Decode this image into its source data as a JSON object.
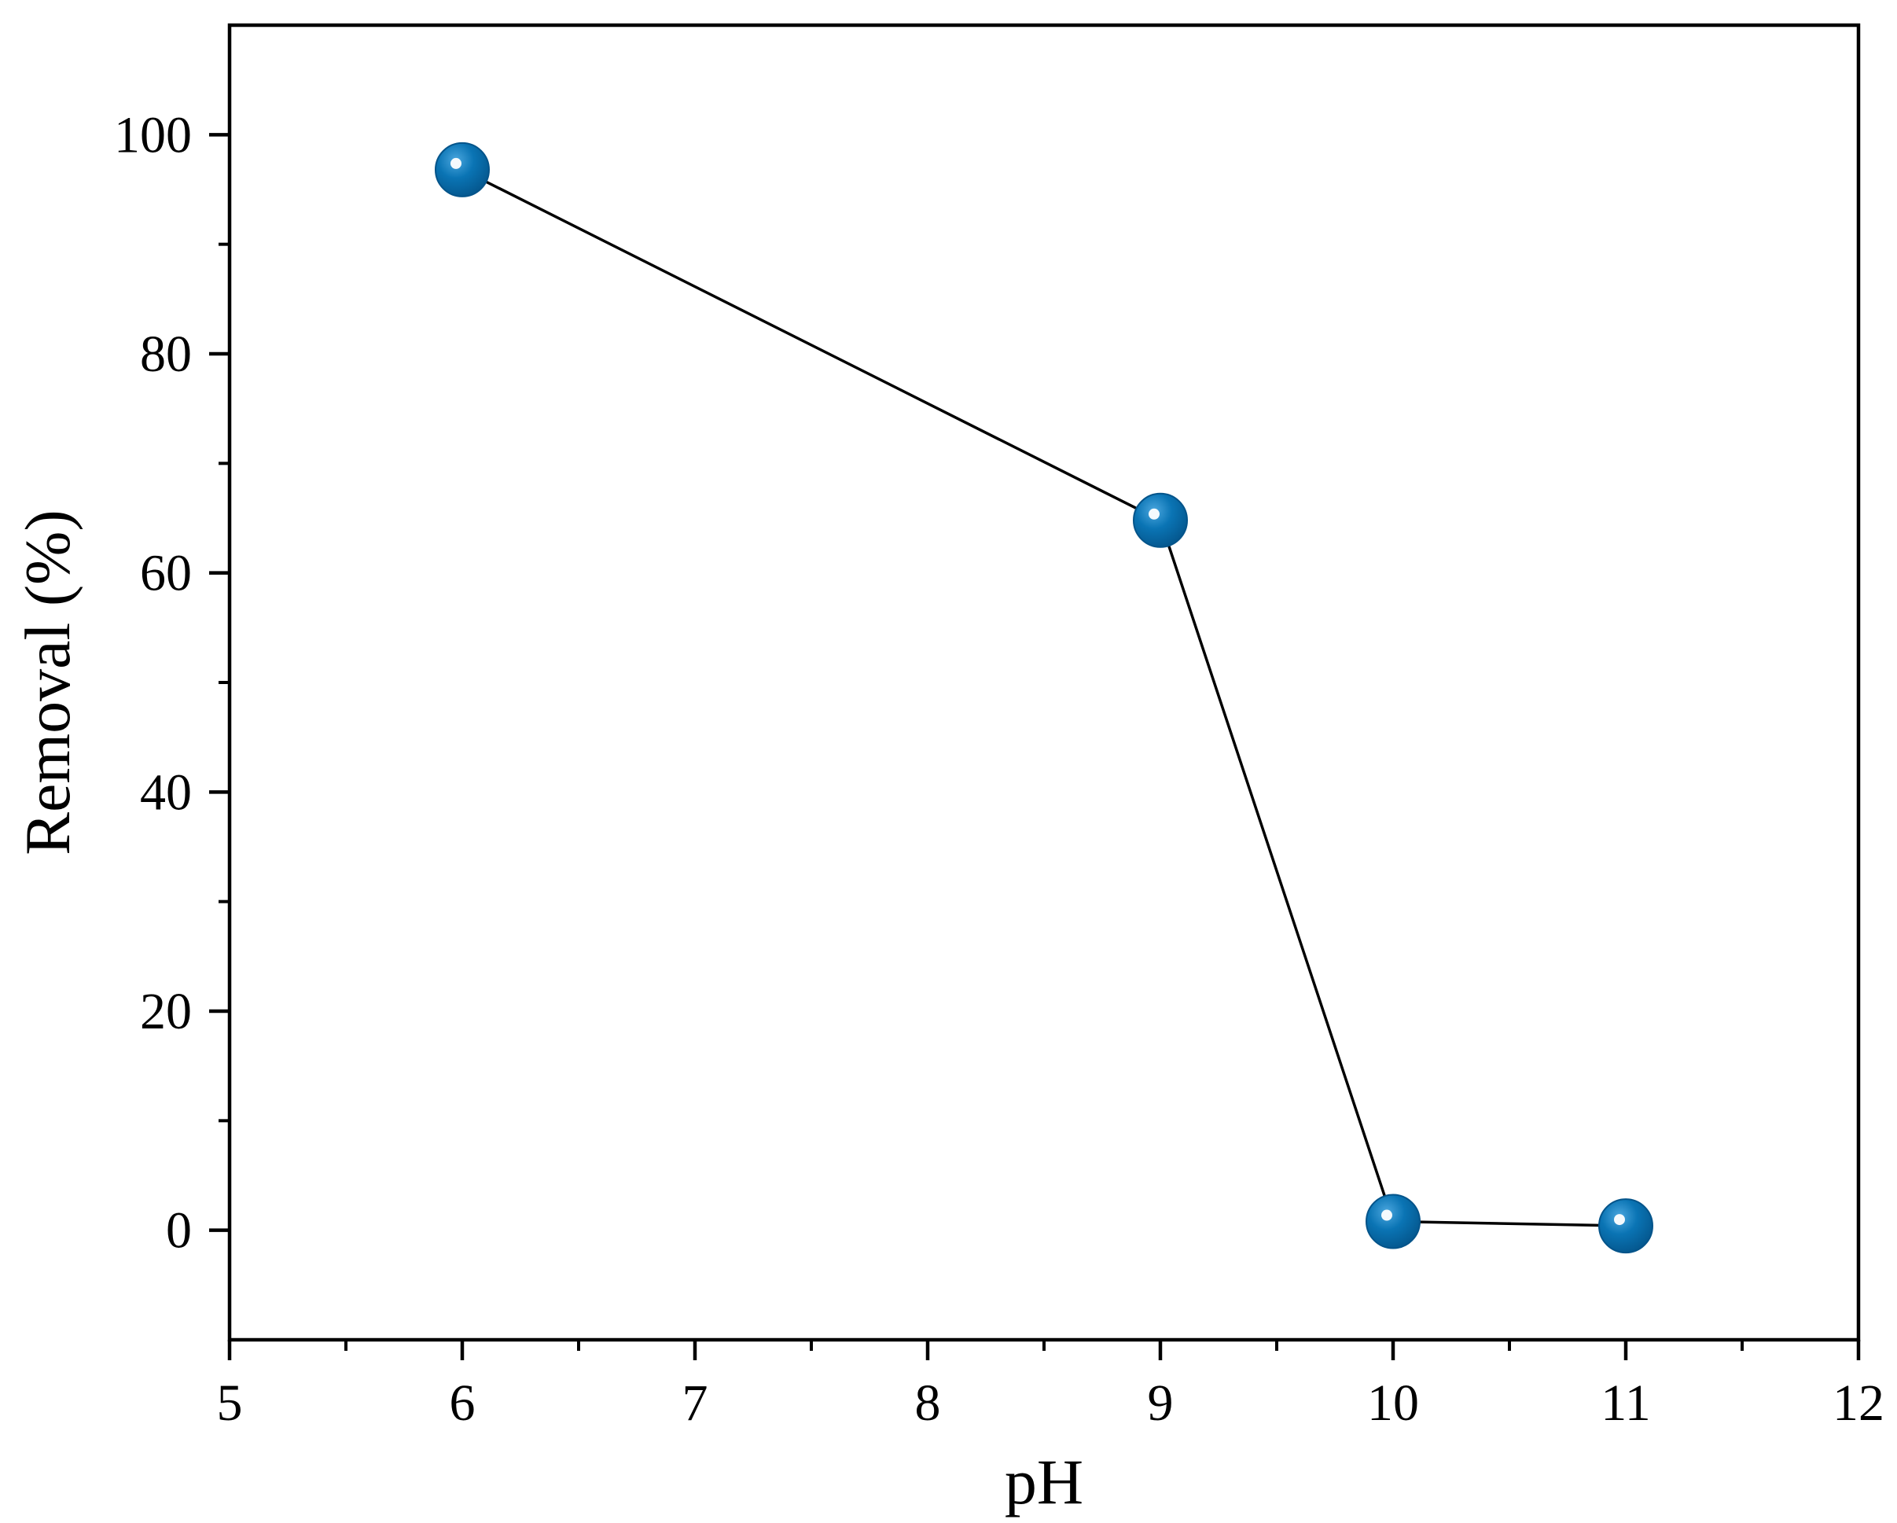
{
  "chart_data": {
    "type": "line",
    "xlabel": "pH",
    "ylabel": "Removal (%)",
    "xlim": [
      5,
      12
    ],
    "ylim": [
      -10,
      110
    ],
    "x_ticks": [
      5,
      6,
      7,
      8,
      9,
      10,
      11,
      12
    ],
    "x_tick_labels": [
      "5",
      "6",
      "7",
      "8",
      "9",
      "10",
      "11",
      "12"
    ],
    "x_minor_step": 0.5,
    "y_ticks": [
      0,
      20,
      40,
      60,
      80,
      100
    ],
    "y_tick_labels": [
      "0",
      "20",
      "40",
      "60",
      "80",
      "100"
    ],
    "y_minor_step": 10,
    "grid": false,
    "legend": "none",
    "series": [
      {
        "x": [
          6,
          9,
          10,
          11
        ],
        "values": [
          96.8,
          64.8,
          0.8,
          0.4
        ]
      }
    ],
    "colors": {
      "marker": "#0a74b4",
      "marker_dark": "#04548a",
      "marker_highlight": "#ffffff",
      "line": "#000000",
      "axis": "#000000"
    }
  }
}
